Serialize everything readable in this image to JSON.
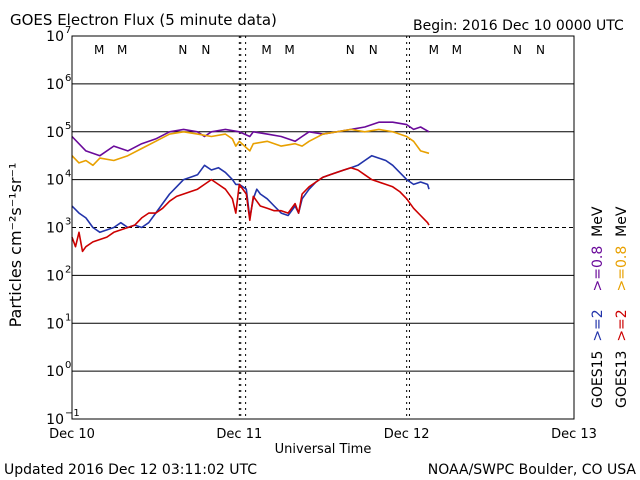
{
  "chart_data": {
    "type": "line",
    "title": "GOES Electron Flux (5 minute data)",
    "begin_label": "Begin: 2016 Dec 10 0000 UTC",
    "updated_label": "Updated 2016 Dec 12 03:11:02 UTC",
    "credit_label": "NOAA/SWPC Boulder, CO USA",
    "xlabel": "Universal Time",
    "ylabel": "Particles cm⁻²s⁻¹sr⁻¹",
    "x_unit": "hours since 2016 Dec 10 0000 UTC",
    "xlim": [
      0,
      72
    ],
    "ylim_log10": [
      -1,
      7
    ],
    "x_ticks": [
      {
        "hour": 0,
        "label": "Dec 10"
      },
      {
        "hour": 24,
        "label": "Dec 11"
      },
      {
        "hour": 48,
        "label": "Dec 12"
      },
      {
        "hour": 72,
        "label": "Dec 13"
      }
    ],
    "y_ticks": [
      {
        "exp": 7,
        "label": "7"
      },
      {
        "exp": 6,
        "label": "6"
      },
      {
        "exp": 5,
        "label": "5"
      },
      {
        "exp": 4,
        "label": "4"
      },
      {
        "exp": 3,
        "label": "3"
      },
      {
        "exp": 2,
        "label": "2"
      },
      {
        "exp": 1,
        "label": "1"
      },
      {
        "exp": 0,
        "label": "0"
      },
      {
        "exp": -1,
        "label": "−1"
      }
    ],
    "y_tick_base": "10",
    "alert_threshold_exp": 3,
    "mn_markers": [
      {
        "hour": 3.9,
        "label": "M",
        "color": "#cc0000"
      },
      {
        "hour": 7.2,
        "label": "M",
        "color": "#2233aa"
      },
      {
        "hour": 15.9,
        "label": "N",
        "color": "#cc0000"
      },
      {
        "hour": 19.2,
        "label": "N",
        "color": "#2233aa"
      },
      {
        "hour": 27.9,
        "label": "M",
        "color": "#cc0000"
      },
      {
        "hour": 31.2,
        "label": "M",
        "color": "#2233aa"
      },
      {
        "hour": 39.9,
        "label": "N",
        "color": "#cc0000"
      },
      {
        "hour": 43.2,
        "label": "N",
        "color": "#2233aa"
      },
      {
        "hour": 51.9,
        "label": "M",
        "color": "#cc0000"
      },
      {
        "hour": 55.2,
        "label": "M",
        "color": "#2233aa"
      },
      {
        "hour": 63.9,
        "label": "N",
        "color": "#cc0000"
      },
      {
        "hour": 67.2,
        "label": "N",
        "color": "#2233aa"
      }
    ],
    "noon_lines_hours": [
      24.2,
      24.9,
      48.4
    ],
    "legend": [
      {
        "label": "GOES13  >=2  MeV",
        "color": "#cc0000",
        "parts": [
          "GOES13",
          ">=2",
          ""
        ]
      },
      {
        "label": "GOES15  >=2  MeV",
        "color": "#2233aa",
        "parts": [
          "GOES15",
          ">=2",
          ""
        ]
      },
      {
        "label": ">=0.8  MeV (GOES13)",
        "color": "#e8a000",
        "parts": [
          "",
          ">=0.8",
          "MeV"
        ]
      },
      {
        "label": ">=0.8  MeV (GOES15)",
        "color": "#6a0a9a",
        "parts": [
          "",
          ">=0.8",
          "MeV"
        ]
      }
    ],
    "series": [
      {
        "name": "GOES15 >=0.8 MeV",
        "color": "#6a0a9a",
        "x": [
          0,
          2,
          4,
          6,
          8,
          10,
          12,
          14,
          16,
          18,
          19,
          20,
          22,
          24,
          25.5,
          26,
          28,
          30,
          32,
          33,
          34,
          36,
          38,
          40,
          42,
          44,
          46,
          48,
          49,
          50,
          51.2
        ],
        "y_log10": [
          4.9,
          4.6,
          4.5,
          4.7,
          4.6,
          4.75,
          4.85,
          5.0,
          5.05,
          5.0,
          4.9,
          5.0,
          5.05,
          5.0,
          4.9,
          5.0,
          4.95,
          4.9,
          4.8,
          4.9,
          5.0,
          4.95,
          5.0,
          5.05,
          5.1,
          5.2,
          5.2,
          5.15,
          5.05,
          5.1,
          5.0
        ]
      },
      {
        "name": "GOES13 >=0.8 MeV",
        "color": "#e8a000",
        "x": [
          0,
          1,
          2,
          3,
          4,
          6,
          8,
          10,
          12,
          14,
          16,
          18,
          20,
          22,
          23,
          23.5,
          24,
          25.5,
          26,
          28,
          30,
          32,
          33,
          34,
          36,
          38,
          40,
          42,
          44,
          46,
          48,
          49,
          50,
          51.2
        ],
        "y_log10": [
          4.5,
          4.35,
          4.4,
          4.3,
          4.45,
          4.4,
          4.5,
          4.65,
          4.8,
          4.95,
          5.0,
          4.95,
          4.9,
          4.95,
          4.85,
          4.7,
          4.8,
          4.6,
          4.75,
          4.8,
          4.7,
          4.75,
          4.7,
          4.8,
          4.95,
          5.0,
          5.05,
          5.0,
          5.05,
          5.0,
          4.9,
          4.8,
          4.6,
          4.55
        ]
      },
      {
        "name": "GOES15 >=2 MeV",
        "color": "#2233aa",
        "x": [
          0,
          1,
          2,
          3,
          4,
          5,
          6,
          7,
          8,
          9,
          10,
          11,
          12,
          13,
          14,
          15,
          16,
          17,
          18,
          19,
          20,
          21,
          22,
          23,
          23.5,
          24,
          25,
          25.5,
          26,
          26.5,
          27,
          28,
          29,
          30,
          31,
          32,
          32.5,
          33,
          34,
          35,
          36,
          37,
          38,
          39,
          40,
          41,
          42,
          43,
          44,
          45,
          46,
          47,
          48,
          49,
          50,
          51,
          51.2
        ],
        "y_log10": [
          3.45,
          3.3,
          3.2,
          3.0,
          2.9,
          2.95,
          3.0,
          3.1,
          3.0,
          3.05,
          3.0,
          3.1,
          3.3,
          3.5,
          3.7,
          3.85,
          4.0,
          4.05,
          4.1,
          4.3,
          4.2,
          4.25,
          4.15,
          4.0,
          3.9,
          3.9,
          3.8,
          3.2,
          3.6,
          3.8,
          3.7,
          3.6,
          3.45,
          3.3,
          3.25,
          3.45,
          3.3,
          3.6,
          3.8,
          3.95,
          4.05,
          4.1,
          4.15,
          4.2,
          4.25,
          4.3,
          4.4,
          4.5,
          4.45,
          4.4,
          4.3,
          4.15,
          4.0,
          3.9,
          3.95,
          3.9,
          3.8
        ]
      },
      {
        "name": "GOES13 >=2 MeV",
        "color": "#cc0000",
        "x": [
          0,
          0.5,
          1,
          1.5,
          2,
          3,
          4,
          5,
          6,
          7,
          8,
          9,
          10,
          11,
          12,
          13,
          14,
          15,
          16,
          17,
          18,
          19,
          20,
          21,
          22,
          23,
          23.5,
          24,
          25,
          25.5,
          26,
          26.5,
          27,
          28,
          29,
          30,
          31,
          32,
          32.5,
          33,
          34,
          35,
          36,
          37,
          38,
          39,
          40,
          41,
          42,
          43,
          44,
          45,
          46,
          47,
          48,
          49,
          50,
          51,
          51.2
        ],
        "y_log10": [
          2.8,
          2.6,
          2.9,
          2.5,
          2.6,
          2.7,
          2.75,
          2.8,
          2.9,
          2.95,
          3.0,
          3.05,
          3.2,
          3.3,
          3.3,
          3.4,
          3.55,
          3.65,
          3.7,
          3.75,
          3.8,
          3.9,
          4.0,
          3.9,
          3.8,
          3.6,
          3.3,
          3.9,
          3.7,
          3.15,
          3.65,
          3.55,
          3.45,
          3.4,
          3.35,
          3.35,
          3.3,
          3.5,
          3.3,
          3.7,
          3.85,
          3.95,
          4.05,
          4.1,
          4.15,
          4.2,
          4.25,
          4.2,
          4.1,
          4.0,
          3.95,
          3.9,
          3.85,
          3.75,
          3.6,
          3.4,
          3.25,
          3.1,
          3.05
        ]
      }
    ]
  }
}
